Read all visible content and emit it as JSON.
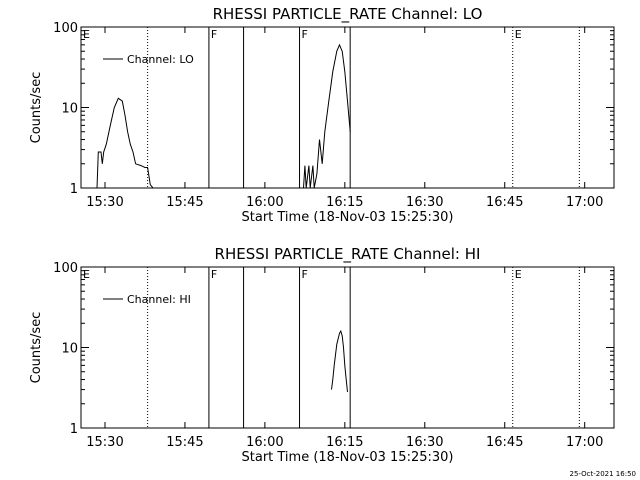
{
  "footer": {
    "timestamp": "25-Oct-2021 16:50"
  },
  "chart_data": [
    {
      "type": "line",
      "title": "RHESSI PARTICLE_RATE Channel: LO",
      "xlabel": "Start Time (18-Nov-03 15:25:30)",
      "ylabel": "Counts/sec",
      "xlim": [
        "15:25:30",
        "17:05:30"
      ],
      "ylim": [
        1,
        100
      ],
      "yscale": "log",
      "grid": false,
      "legend_position": "top-left",
      "x_ticks": [
        "15:30",
        "15:45",
        "16:00",
        "16:15",
        "16:30",
        "16:45",
        "17:00"
      ],
      "y_ticks": [
        "1",
        "10",
        "100"
      ],
      "legend": [
        "Channel: LO"
      ],
      "markers": [
        {
          "time": "15:25:30",
          "label": "E",
          "style": "none"
        },
        {
          "time": "15:38:00",
          "label": "",
          "style": "dotted"
        },
        {
          "time": "15:49:30",
          "label": "F",
          "style": "solid"
        },
        {
          "time": "15:56:00",
          "label": "",
          "style": "solid"
        },
        {
          "time": "16:06:30",
          "label": "F",
          "style": "solid"
        },
        {
          "time": "16:16:00",
          "label": "",
          "style": "solid"
        },
        {
          "time": "16:46:30",
          "label": "E",
          "style": "dotted"
        },
        {
          "time": "16:59:00",
          "label": "",
          "style": "dotted"
        }
      ],
      "series": [
        {
          "points": [
            [
              "15:28:30",
              1
            ],
            [
              "15:28:45",
              2.8
            ],
            [
              "15:29:15",
              2.8
            ],
            [
              "15:29:30",
              2
            ],
            [
              "15:29:45",
              2.8
            ],
            [
              "15:30:15",
              3.5
            ],
            [
              "15:31:00",
              6
            ],
            [
              "15:31:45",
              10
            ],
            [
              "15:32:30",
              13
            ],
            [
              "15:33:15",
              12
            ],
            [
              "15:33:45",
              8
            ],
            [
              "15:34:15",
              5
            ],
            [
              "15:34:45",
              3.5
            ],
            [
              "15:35:15",
              2.8
            ],
            [
              "15:35:45",
              2
            ],
            [
              "15:36:45",
              1.9
            ],
            [
              "15:37:30",
              1.8
            ],
            [
              "15:38:00",
              1.8
            ],
            [
              "15:38:30",
              1.1
            ],
            [
              "15:39:00",
              1
            ]
          ]
        },
        {
          "points": [
            [
              "16:07:15",
              1
            ],
            [
              "16:07:30",
              1.9
            ],
            [
              "16:07:45",
              1
            ],
            [
              "16:08:15",
              1.9
            ],
            [
              "16:08:30",
              1
            ],
            [
              "16:09:00",
              1.9
            ],
            [
              "16:09:15",
              1
            ],
            [
              "16:09:45",
              1.5
            ],
            [
              "16:10:15",
              4
            ],
            [
              "16:10:45",
              2
            ],
            [
              "16:11:15",
              5
            ],
            [
              "16:12:00",
              12
            ],
            [
              "16:12:45",
              28
            ],
            [
              "16:13:30",
              50
            ],
            [
              "16:14:00",
              60
            ],
            [
              "16:14:30",
              50
            ],
            [
              "16:15:00",
              28
            ],
            [
              "16:15:30",
              12
            ],
            [
              "16:16:00",
              5
            ]
          ]
        }
      ]
    },
    {
      "type": "line",
      "title": "RHESSI PARTICLE_RATE Channel: HI",
      "xlabel": "Start Time (18-Nov-03 15:25:30)",
      "ylabel": "Counts/sec",
      "xlim": [
        "15:25:30",
        "17:05:30"
      ],
      "ylim": [
        1,
        100
      ],
      "yscale": "log",
      "grid": false,
      "legend_position": "top-left",
      "x_ticks": [
        "15:30",
        "15:45",
        "16:00",
        "16:15",
        "16:30",
        "16:45",
        "17:00"
      ],
      "y_ticks": [
        "1",
        "10",
        "100"
      ],
      "legend": [
        "Channel: HI"
      ],
      "markers": [
        {
          "time": "15:25:30",
          "label": "E",
          "style": "none"
        },
        {
          "time": "15:38:00",
          "label": "",
          "style": "dotted"
        },
        {
          "time": "15:49:30",
          "label": "F",
          "style": "solid"
        },
        {
          "time": "15:56:00",
          "label": "",
          "style": "solid"
        },
        {
          "time": "16:06:30",
          "label": "F",
          "style": "solid"
        },
        {
          "time": "16:16:00",
          "label": "",
          "style": "solid"
        },
        {
          "time": "16:46:30",
          "label": "E",
          "style": "dotted"
        },
        {
          "time": "16:59:00",
          "label": "",
          "style": "dotted"
        }
      ],
      "series": [
        {
          "points": [
            [
              "16:12:30",
              3
            ],
            [
              "16:12:45",
              4
            ],
            [
              "16:13:00",
              6
            ],
            [
              "16:13:30",
              11
            ],
            [
              "16:14:00",
              15
            ],
            [
              "16:14:15",
              16
            ],
            [
              "16:14:30",
              14
            ],
            [
              "16:14:45",
              10
            ],
            [
              "16:15:00",
              6
            ],
            [
              "16:15:15",
              4
            ],
            [
              "16:15:30",
              2.8
            ]
          ]
        }
      ]
    }
  ]
}
